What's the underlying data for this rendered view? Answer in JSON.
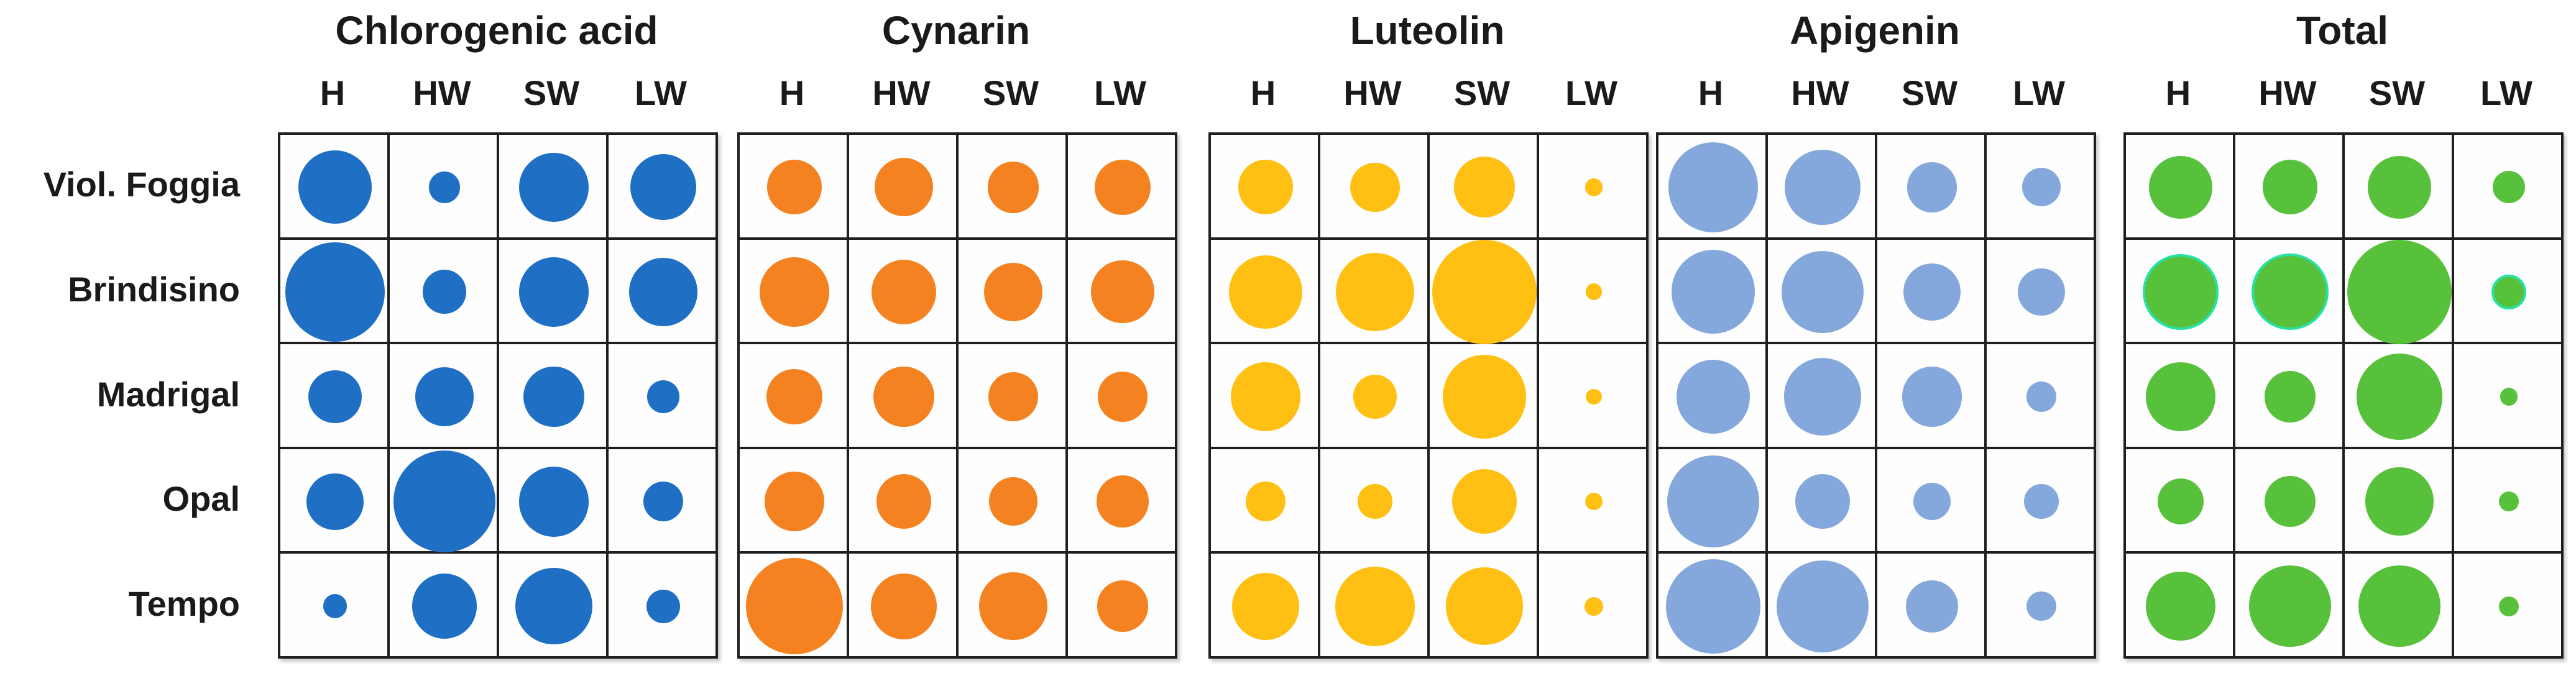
{
  "chart_data": {
    "type": "heatmap",
    "subtype": "bubble-matrix",
    "description": "Bubble size matrix of phenolic compound levels per cultivar (rows) and plant part (columns) across five panels; bubble diameter is proportional to relative content (fraction of cell height).",
    "rows": [
      "Viol. Foggia",
      "Brindisino",
      "Madrigal",
      "Opal",
      "Tempo"
    ],
    "columns": [
      "H",
      "HW",
      "SW",
      "LW"
    ],
    "legend_position": "none",
    "grid": "on",
    "panels": [
      {
        "title": "Chlorogenic acid",
        "color": "#1F6FC5",
        "sizes": [
          [
            0.7,
            0.3,
            0.66,
            0.63
          ],
          [
            0.95,
            0.42,
            0.66,
            0.65
          ],
          [
            0.51,
            0.56,
            0.58,
            0.31
          ],
          [
            0.54,
            0.97,
            0.67,
            0.38
          ],
          [
            0.23,
            0.62,
            0.73,
            0.32
          ]
        ],
        "outlined_cells": []
      },
      {
        "title": "Cynarin",
        "color": "#F58220",
        "sizes": [
          [
            0.52,
            0.56,
            0.49,
            0.53
          ],
          [
            0.66,
            0.62,
            0.56,
            0.6
          ],
          [
            0.53,
            0.58,
            0.47,
            0.48
          ],
          [
            0.57,
            0.52,
            0.46,
            0.5
          ],
          [
            0.92,
            0.63,
            0.65,
            0.49
          ]
        ],
        "outlined_cells": []
      },
      {
        "title": "Luteolin",
        "color": "#FFC013",
        "sizes": [
          [
            0.52,
            0.47,
            0.58,
            0.17
          ],
          [
            0.7,
            0.75,
            1.0,
            0.16
          ],
          [
            0.66,
            0.42,
            0.8,
            0.15
          ],
          [
            0.38,
            0.33,
            0.62,
            0.17
          ],
          [
            0.64,
            0.76,
            0.74,
            0.18
          ]
        ],
        "outlined_cells": []
      },
      {
        "title": "Apigenin",
        "color": "#84A8DB",
        "sizes": [
          [
            0.86,
            0.72,
            0.48,
            0.37
          ],
          [
            0.8,
            0.78,
            0.55,
            0.45
          ],
          [
            0.7,
            0.74,
            0.57,
            0.29
          ],
          [
            0.88,
            0.52,
            0.36,
            0.33
          ],
          [
            0.9,
            0.88,
            0.5,
            0.28
          ]
        ],
        "outlined_cells": []
      },
      {
        "title": "Total",
        "color": "#57C13B",
        "outline_color": "#27E2A4",
        "sizes": [
          [
            0.6,
            0.52,
            0.6,
            0.31
          ],
          [
            0.72,
            0.73,
            1.0,
            0.33
          ],
          [
            0.66,
            0.49,
            0.82,
            0.17
          ],
          [
            0.44,
            0.49,
            0.65,
            0.19
          ],
          [
            0.66,
            0.78,
            0.78,
            0.19
          ]
        ],
        "outlined_cells": [
          [
            1,
            0
          ],
          [
            1,
            1
          ],
          [
            1,
            3
          ]
        ]
      }
    ],
    "colors": {
      "text": "#1a1a1a",
      "grid_line": "#1f1f1f",
      "background": "#ffffff"
    }
  }
}
